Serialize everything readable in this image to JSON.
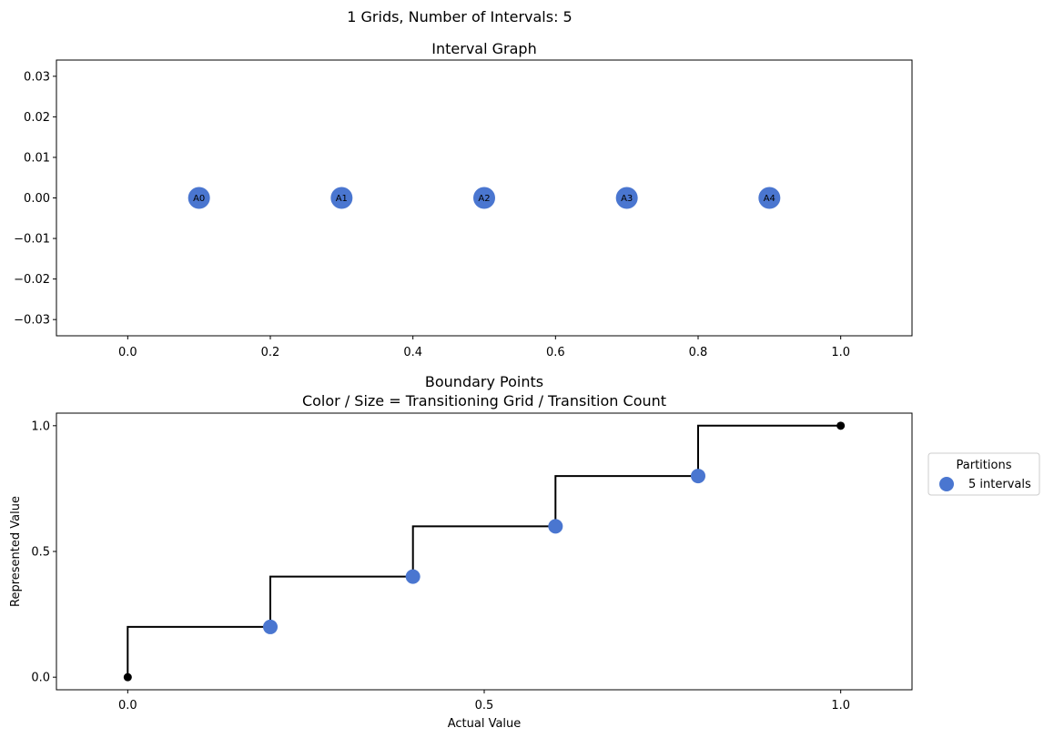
{
  "figure_title": "1 Grids, Number of Intervals: 5",
  "colors": {
    "marker": "#4a76d0",
    "step_line": "#000000",
    "endpoint": "#000000"
  },
  "chart_data": [
    {
      "type": "scatter",
      "title": "Interval Graph",
      "xlabel": "",
      "ylabel": "",
      "xlim": [
        -0.1,
        1.1
      ],
      "ylim": [
        -0.034,
        0.034
      ],
      "xticks": [
        "0.0",
        "0.2",
        "0.4",
        "0.6",
        "0.8",
        "1.0"
      ],
      "yticks": [
        "0.03",
        "0.02",
        "0.01",
        "0.00",
        "−0.01",
        "−0.02",
        "−0.03"
      ],
      "points": [
        {
          "label": "A0",
          "x": 0.1,
          "y": 0
        },
        {
          "label": "A1",
          "x": 0.3,
          "y": 0
        },
        {
          "label": "A2",
          "x": 0.5,
          "y": 0
        },
        {
          "label": "A3",
          "x": 0.7,
          "y": 0
        },
        {
          "label": "A4",
          "x": 0.9,
          "y": 0
        }
      ],
      "grid": false
    },
    {
      "type": "line",
      "title": "Boundary Points",
      "subtitle": "Color / Size = Transitioning Grid / Transition Count",
      "xlabel": "Actual Value",
      "ylabel": "Represented Value",
      "xlim": [
        -0.1,
        1.1
      ],
      "ylim": [
        -0.05,
        1.05
      ],
      "xticks": [
        "0.0",
        "0.5",
        "1.0"
      ],
      "yticks": [
        "1.0",
        "0.5",
        "0.0"
      ],
      "step": {
        "x": [
          0.0,
          0.0,
          0.2,
          0.2,
          0.4,
          0.4,
          0.6,
          0.6,
          0.8,
          0.8,
          1.0
        ],
        "y": [
          0.0,
          0.2,
          0.2,
          0.4,
          0.4,
          0.6,
          0.6,
          0.8,
          0.8,
          1.0,
          1.0
        ]
      },
      "boundary_points": [
        {
          "x": 0.2,
          "y": 0.2
        },
        {
          "x": 0.4,
          "y": 0.4
        },
        {
          "x": 0.6,
          "y": 0.6
        },
        {
          "x": 0.8,
          "y": 0.8
        }
      ],
      "endpoints": [
        {
          "x": 0.0,
          "y": 0.0
        },
        {
          "x": 1.0,
          "y": 1.0
        }
      ],
      "legend": {
        "title": "Partitions",
        "entries": [
          "5 intervals"
        ],
        "placement": "right"
      },
      "grid": false
    }
  ]
}
